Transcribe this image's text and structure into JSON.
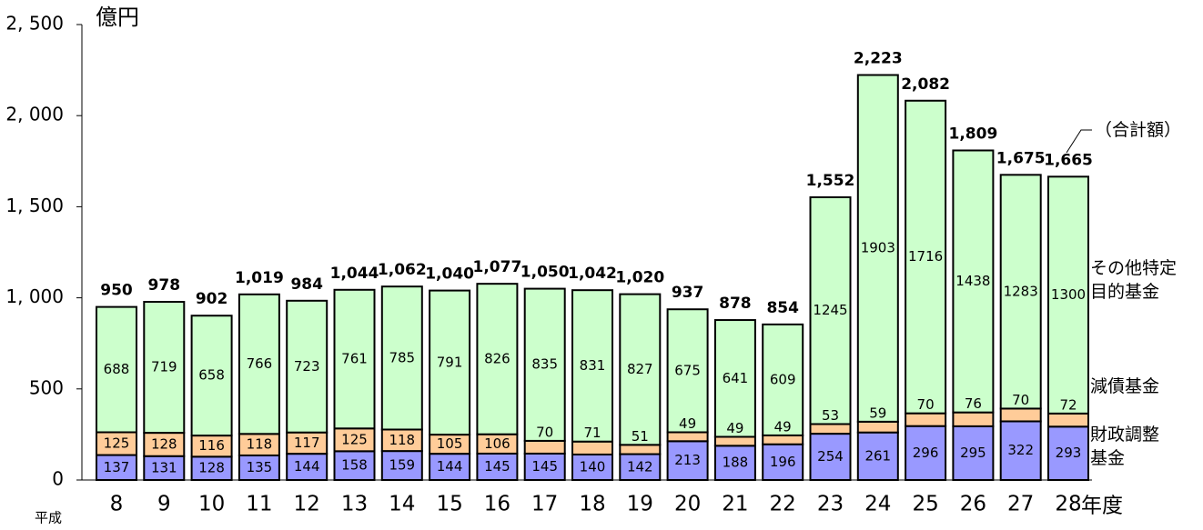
{
  "chart_data": {
    "type": "stacked_bar",
    "y_unit_label": "億円",
    "x_prefix": "平成",
    "x_suffix": "年度",
    "categories": [
      "8",
      "9",
      "10",
      "11",
      "12",
      "13",
      "14",
      "15",
      "16",
      "17",
      "18",
      "19",
      "20",
      "21",
      "22",
      "23",
      "24",
      "25",
      "26",
      "27",
      "28"
    ],
    "series": [
      {
        "name": "財政調整基金",
        "color": "#9999ff",
        "values": [
          137,
          131,
          128,
          135,
          144,
          158,
          159,
          144,
          145,
          145,
          140,
          142,
          213,
          188,
          196,
          254,
          261,
          296,
          295,
          322,
          293
        ]
      },
      {
        "name": "減債基金",
        "color": "#ffcc99",
        "values": [
          125,
          128,
          116,
          118,
          117,
          125,
          118,
          105,
          106,
          70,
          71,
          51,
          49,
          49,
          49,
          53,
          59,
          70,
          76,
          70,
          72
        ]
      },
      {
        "name": "その他特定目的基金",
        "color": "#ccffcc",
        "values": [
          688,
          719,
          658,
          766,
          723,
          761,
          785,
          791,
          826,
          835,
          831,
          827,
          675,
          641,
          609,
          1245,
          1903,
          1716,
          1438,
          1283,
          1300
        ]
      }
    ],
    "totals_name": "（合計額）",
    "totals": [
      950,
      978,
      902,
      1019,
      984,
      1044,
      1062,
      1040,
      1077,
      1050,
      1042,
      1020,
      937,
      878,
      854,
      1552,
      2223,
      2082,
      1809,
      1675,
      1665
    ],
    "totals_value_labels": [
      "950",
      "978",
      "902",
      "1,019",
      "984",
      "1,044",
      "1,062",
      "1,040",
      "1,077",
      "1,050",
      "1,042",
      "1,020",
      "937",
      "878",
      "854",
      "1,552",
      "2,223",
      "2,082",
      "1,809",
      "1,675",
      "1,665"
    ],
    "ylim": [
      0,
      2500
    ],
    "yticks": [
      0,
      500,
      {
        "value": 1000,
        "label": "1, 000"
      },
      {
        "value": 1500,
        "label": "1, 500"
      },
      {
        "value": 2000,
        "label": "2, 000"
      },
      {
        "value": 2500,
        "label": "2, 500"
      }
    ]
  }
}
